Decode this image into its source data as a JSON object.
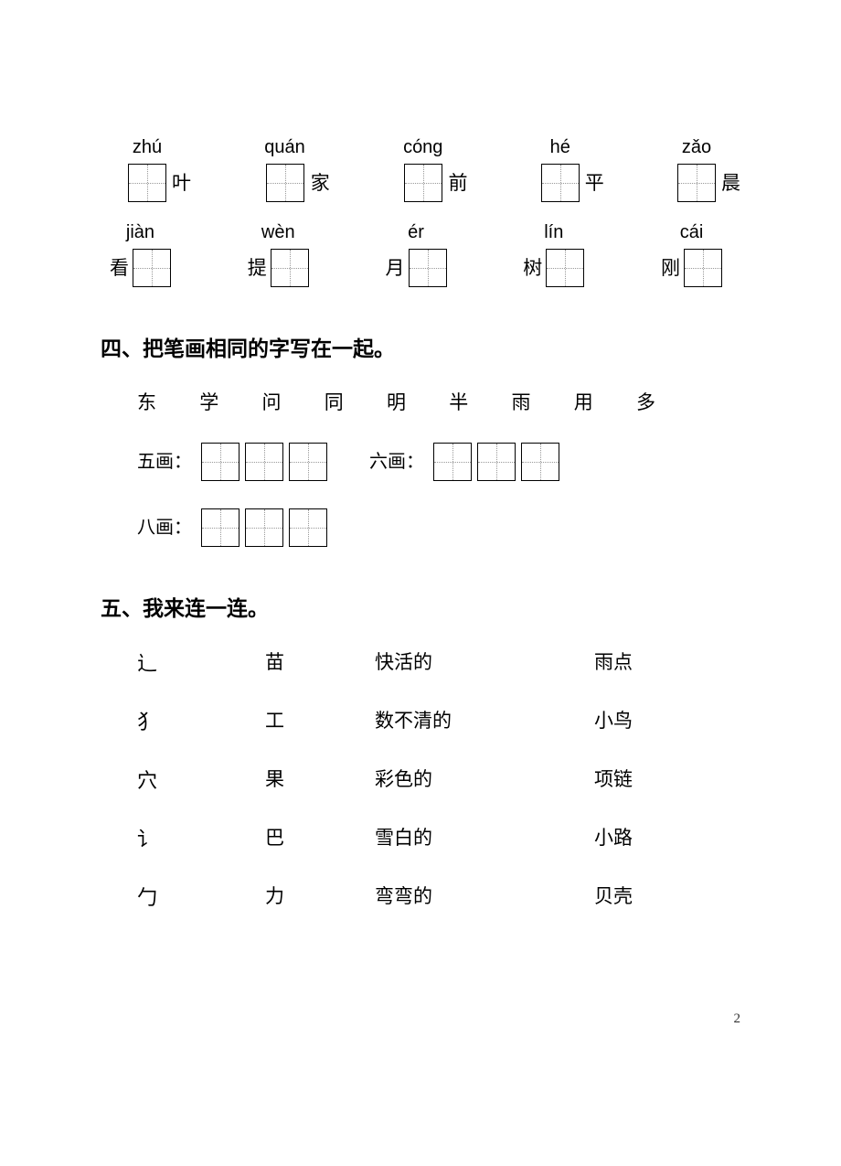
{
  "row1": [
    {
      "pinyin": "zhú",
      "after": "叶"
    },
    {
      "pinyin": "quán",
      "after": "家"
    },
    {
      "pinyin": "cóng",
      "after": "前"
    },
    {
      "pinyin": "hé",
      "after": "平"
    },
    {
      "pinyin": "zǎo",
      "after": "晨"
    }
  ],
  "row2": [
    {
      "pinyin": "jiàn",
      "before": "看"
    },
    {
      "pinyin": "wèn",
      "before": "提"
    },
    {
      "pinyin": "ér",
      "before": "月"
    },
    {
      "pinyin": "lín",
      "before": "树"
    },
    {
      "pinyin": "cái",
      "before": "刚"
    }
  ],
  "section4_title": "四、把笔画相同的字写在一起。",
  "char_list": [
    "东",
    "学",
    "问",
    "同",
    "明",
    "半",
    "雨",
    "用",
    "多"
  ],
  "stroke_labels": {
    "five": "五画：",
    "six": "六画：",
    "eight": "八画："
  },
  "section5_title": "五、我来连一连。",
  "match_rows": [
    {
      "c1": "辶",
      "c2": "苗",
      "c3": "快活的",
      "c4": "雨点"
    },
    {
      "c1": "犭",
      "c2": "工",
      "c3": "数不清的",
      "c4": "小鸟"
    },
    {
      "c1": "穴",
      "c2": "果",
      "c3": "彩色的",
      "c4": "项链"
    },
    {
      "c1": "讠",
      "c2": "巴",
      "c3": "雪白的",
      "c4": "小路"
    },
    {
      "c1": "勹",
      "c2": "力",
      "c3": "弯弯的",
      "c4": "贝壳"
    }
  ],
  "page_number": "2"
}
